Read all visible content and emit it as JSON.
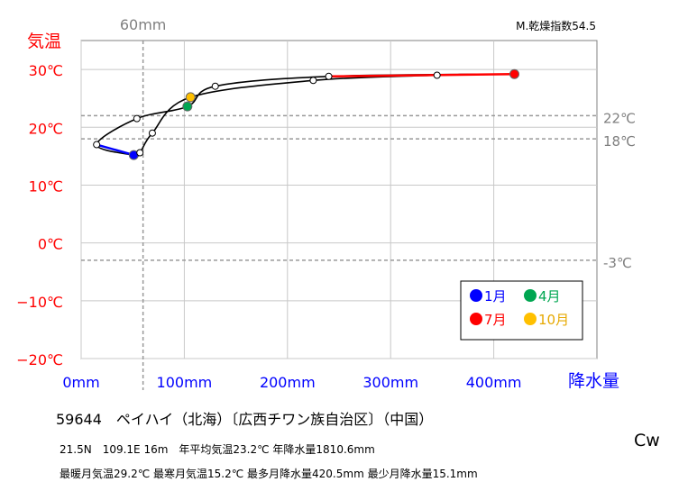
{
  "chart_data": {
    "type": "line",
    "title": "M.乾燥指数54.5",
    "y_axis": {
      "label": "気温",
      "min": -20,
      "max": 35,
      "ticks": [
        30,
        20,
        10,
        0,
        -10,
        -20
      ],
      "tick_labels": [
        "30℃",
        "20℃",
        "10℃",
        "0℃",
        "−10℃",
        "−20℃"
      ],
      "color": "#ff0000"
    },
    "x_axis": {
      "label": "降水量",
      "min": 0,
      "max": 500,
      "ticks": [
        0,
        100,
        200,
        300,
        400
      ],
      "tick_labels": [
        "0mm",
        "100mm",
        "200mm",
        "300mm",
        "400mm"
      ],
      "color": "#0000ff"
    },
    "reference_lines": [
      {
        "axis": "y",
        "value": 22,
        "label": "22℃"
      },
      {
        "axis": "y",
        "value": 18,
        "label": "18℃"
      },
      {
        "axis": "y",
        "value": -3,
        "label": "-3℃"
      },
      {
        "axis": "x",
        "value": 60,
        "label": "60mm"
      }
    ],
    "grid": true,
    "points": [
      {
        "month": 1,
        "x": 51,
        "y": 15.2
      },
      {
        "month": 2,
        "x": 15,
        "y": 17.0
      },
      {
        "month": 3,
        "x": 54,
        "y": 21.5
      },
      {
        "month": 4,
        "x": 103,
        "y": 23.6
      },
      {
        "month": 5,
        "x": 130,
        "y": 27.1
      },
      {
        "month": 6,
        "x": 240,
        "y": 28.8
      },
      {
        "month": 7,
        "x": 420,
        "y": 29.2
      },
      {
        "month": 8,
        "x": 345,
        "y": 29.0
      },
      {
        "month": 9,
        "x": 225,
        "y": 28.1
      },
      {
        "month": 10,
        "x": 106,
        "y": 25.2
      },
      {
        "month": 11,
        "x": 69,
        "y": 19.0
      },
      {
        "month": 12,
        "x": 57,
        "y": 15.6
      }
    ],
    "highlighted_segments": [
      {
        "from_month": 1,
        "to_month": 2,
        "color": "#0000ff"
      },
      {
        "from_month": 6,
        "to_month": 7,
        "color": "#ff0000"
      }
    ],
    "legend": {
      "placement": "bottom-right",
      "items": [
        {
          "month": 1,
          "label": "1月",
          "color": "#0000ff",
          "text_color": "#0000ff"
        },
        {
          "month": 4,
          "label": "4月",
          "color": "#00a651",
          "text_color": "#00a651"
        },
        {
          "month": 7,
          "label": "7月",
          "color": "#ff0000",
          "text_color": "#ff0000"
        },
        {
          "month": 10,
          "label": "10月",
          "color": "#ffc000",
          "text_color": "#e6a800"
        }
      ]
    }
  },
  "station": "59644　ペイハイ（北海）〔広西チワン族自治区〕（中国）",
  "info_line1": "21.5N　109.1E 16m　年平均気温23.2℃ 年降水量1810.6mm",
  "info_line2": "最暖月気温29.2℃ 最寒月気温15.2℃ 最多月降水量420.5mm 最少月降水量15.1mm",
  "climate_class": "Cw"
}
